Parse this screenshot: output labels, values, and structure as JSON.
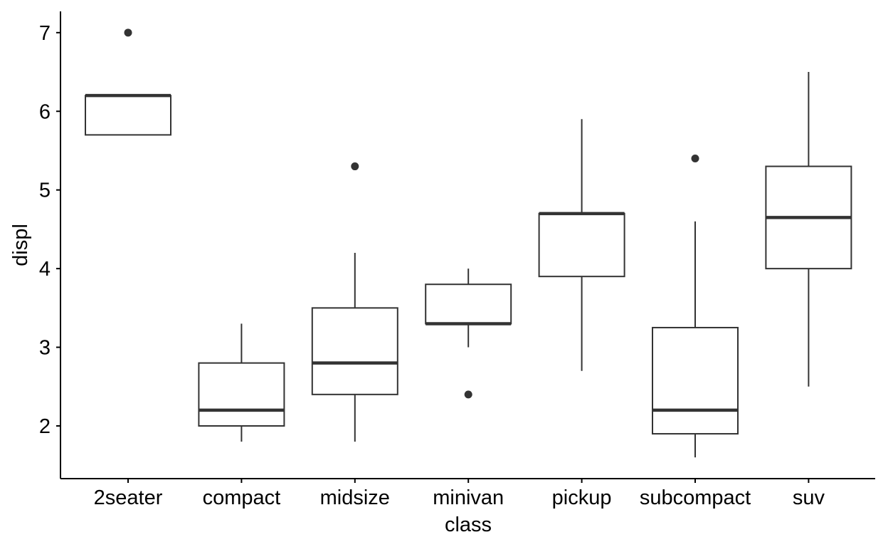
{
  "chart_data": {
    "type": "boxplot",
    "title": "",
    "xlabel": "class",
    "ylabel": "displ",
    "ylim": [
      1.33,
      7.27
    ],
    "yticks": [
      2,
      3,
      4,
      5,
      6,
      7
    ],
    "categories": [
      "2seater",
      "compact",
      "midsize",
      "minivan",
      "pickup",
      "subcompact",
      "suv"
    ],
    "boxes": [
      {
        "category": "2seater",
        "whisker_low": 5.7,
        "q1": 5.7,
        "median": 6.2,
        "q3": 6.2,
        "whisker_high": 6.2,
        "outliers": [
          7.0
        ]
      },
      {
        "category": "compact",
        "whisker_low": 1.8,
        "q1": 2.0,
        "median": 2.2,
        "q3": 2.8,
        "whisker_high": 3.3,
        "outliers": []
      },
      {
        "category": "midsize",
        "whisker_low": 1.8,
        "q1": 2.4,
        "median": 2.8,
        "q3": 3.5,
        "whisker_high": 4.2,
        "outliers": [
          5.3
        ]
      },
      {
        "category": "minivan",
        "whisker_low": 3.0,
        "q1": 3.3,
        "median": 3.3,
        "q3": 3.8,
        "whisker_high": 4.0,
        "outliers": [
          2.4
        ]
      },
      {
        "category": "pickup",
        "whisker_low": 2.7,
        "q1": 3.9,
        "median": 4.7,
        "q3": 4.7,
        "whisker_high": 5.9,
        "outliers": []
      },
      {
        "category": "subcompact",
        "whisker_low": 1.6,
        "q1": 1.9,
        "median": 2.2,
        "q3": 3.25,
        "whisker_high": 4.6,
        "outliers": [
          5.4
        ]
      },
      {
        "category": "suv",
        "whisker_low": 2.5,
        "q1": 4.0,
        "median": 4.65,
        "q3": 5.3,
        "whisker_high": 6.5,
        "outliers": []
      }
    ],
    "colors": {
      "stroke": "#333333",
      "axis": "#000000",
      "background": "#ffffff"
    },
    "grid": false,
    "legend": "none"
  }
}
